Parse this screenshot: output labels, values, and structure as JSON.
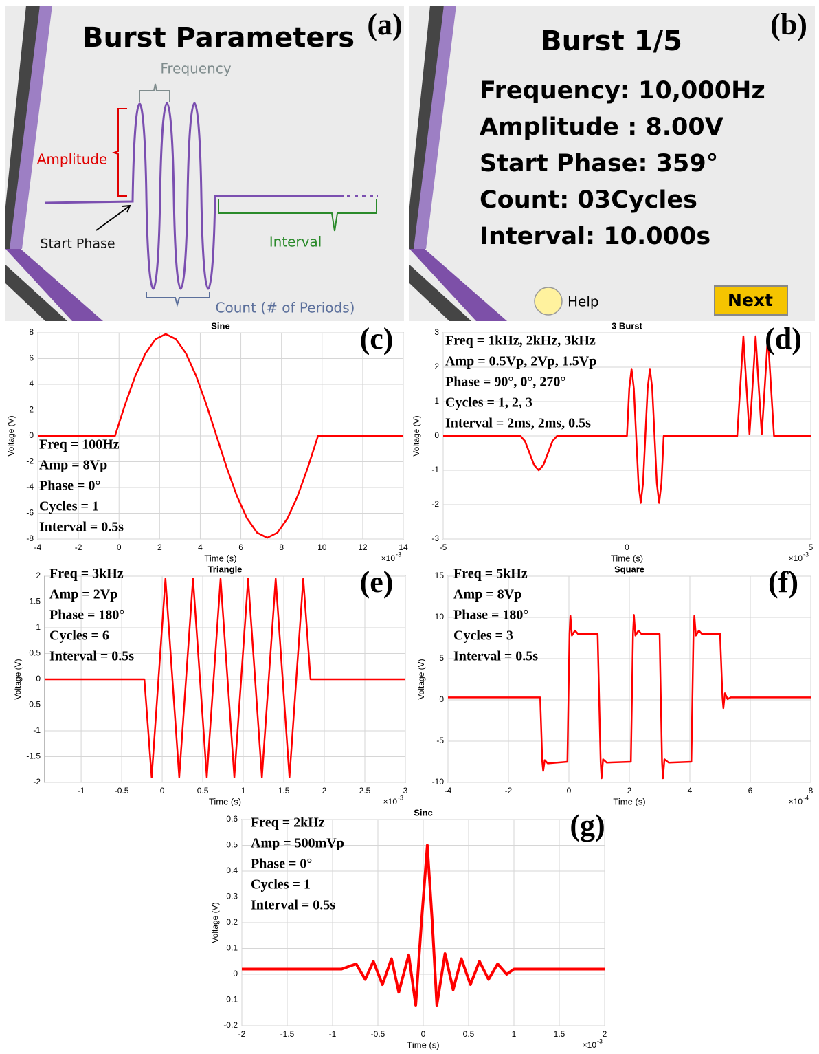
{
  "panel_a": {
    "label": "(a)",
    "title": "Burst Parameters",
    "frequency": "Frequency",
    "amplitude": "Amplitude",
    "start_phase": "Start Phase",
    "interval": "Interval",
    "count": "Count (# of Periods)"
  },
  "panel_b": {
    "label": "(b)",
    "title": "Burst 1/5",
    "lines": [
      "Frequency: 10,000Hz",
      "Amplitude : 8.00V",
      "Start Phase: 359°",
      "Count: 03Cycles",
      "Interval: 10.000s"
    ],
    "help": "Help",
    "next": "Next"
  },
  "chart_data": [
    {
      "type": "line",
      "title": "Sine",
      "x_label": "Time (s)",
      "y_label": "Voltage (V)",
      "x_multiplier": "×10",
      "x_exponent": "-3",
      "panel_label": "(c)",
      "annotations": [
        "Freq = 100Hz",
        "Amp = 8Vp",
        "Phase = 0°",
        "Cycles = 1",
        "Interval = 0.5s"
      ],
      "x": [
        -4,
        -0.2,
        0.3,
        0.8,
        1.3,
        1.8,
        2.3,
        2.8,
        3.3,
        3.8,
        4.3,
        4.8,
        5.3,
        5.8,
        6.3,
        6.8,
        7.3,
        7.8,
        8.3,
        8.8,
        9.3,
        9.8,
        14
      ],
      "values": [
        0,
        0,
        2.44,
        4.64,
        6.39,
        7.51,
        7.9,
        7.51,
        6.39,
        4.64,
        2.44,
        0,
        -2.44,
        -4.64,
        -6.39,
        -7.51,
        -7.9,
        -7.51,
        -6.39,
        -4.64,
        -2.44,
        0,
        0
      ],
      "color": "#ff0000",
      "xlim": [
        -4,
        14
      ],
      "ylim": [
        -8,
        8
      ],
      "xticks": [
        -4,
        -2,
        0,
        2,
        4,
        6,
        8,
        10,
        12,
        14
      ],
      "yticks": [
        -8,
        -6,
        -4,
        -2,
        0,
        2,
        4,
        6,
        8
      ],
      "grid": true
    },
    {
      "type": "line",
      "title": "3 Burst",
      "x_label": "Time (s)",
      "y_label": "Voltage (V)",
      "x_multiplier": "×10",
      "x_exponent": "-3",
      "panel_label": "(d)",
      "annotations": [
        "Freq = 1kHz, 2kHz, 3kHz",
        "Amp = 0.5Vp, 2Vp, 1.5Vp",
        "Phase = 90°, 0°, 270°",
        "Cycles = 1, 2, 3",
        "Interval = 2ms, 2ms, 0.5s"
      ],
      "x": [
        -5,
        -2.9,
        -2.775,
        -2.65,
        -2.525,
        -2.4,
        -2.275,
        -2.15,
        -2.025,
        -1.9,
        0,
        0.0625,
        0.125,
        0.1875,
        0.25,
        0.3125,
        0.375,
        0.4375,
        0.5,
        0.5625,
        0.625,
        0.6875,
        0.75,
        0.8125,
        0.875,
        0.9375,
        1.0,
        3.0,
        3.083,
        3.167,
        3.25,
        3.333,
        3.417,
        3.5,
        3.583,
        3.667,
        3.75,
        3.833,
        3.917,
        4.0,
        5
      ],
      "values": [
        0,
        0,
        -0.15,
        -0.5,
        -0.85,
        -1,
        -0.85,
        -0.5,
        -0.15,
        0,
        0,
        1.38,
        1.95,
        1.38,
        0,
        -1.38,
        -1.95,
        -1.38,
        0,
        1.38,
        1.95,
        1.38,
        0,
        -1.38,
        -1.95,
        -1.38,
        0,
        0,
        1.45,
        2.9,
        1.45,
        0.05,
        1.45,
        2.9,
        1.45,
        0.05,
        1.45,
        2.9,
        1.45,
        0,
        0
      ],
      "color": "#ff0000",
      "xlim": [
        -5,
        5
      ],
      "ylim": [
        -3,
        3
      ],
      "xticks": [
        -5,
        0,
        5
      ],
      "yticks": [
        -3,
        -2,
        -1,
        0,
        1,
        2,
        3
      ],
      "grid": true
    },
    {
      "type": "line",
      "title": "Triangle",
      "x_label": "Time (s)",
      "y_label": "Voltage (V)",
      "x_multiplier": "×10",
      "x_exponent": "-3",
      "panel_label": "(e)",
      "annotations": [
        "Freq = 3kHz",
        "Amp = 2Vp",
        "Phase = 180°",
        "Cycles = 6",
        "Interval = 0.5s"
      ],
      "x": [
        -1.45,
        -0.22,
        -0.13,
        0.04,
        0.21,
        0.38,
        0.55,
        0.72,
        0.89,
        1.06,
        1.23,
        1.4,
        1.57,
        1.74,
        1.83,
        3
      ],
      "values": [
        0,
        0,
        -1.9,
        1.95,
        -1.9,
        1.95,
        -1.9,
        1.95,
        -1.9,
        1.95,
        -1.9,
        1.95,
        -1.9,
        1.95,
        0,
        0
      ],
      "color": "#ff0000",
      "xlim": [
        -1.45,
        3
      ],
      "ylim": [
        -2,
        2
      ],
      "xticks": [
        -1,
        -0.5,
        0,
        0.5,
        1,
        1.5,
        2,
        2.5,
        3
      ],
      "yticks": [
        -2,
        -1.5,
        -1,
        -0.5,
        0,
        0.5,
        1,
        1.5,
        2
      ],
      "grid": true
    },
    {
      "type": "line",
      "title": "Square",
      "x_label": "Time (s)",
      "y_label": "Voltage (V)",
      "x_multiplier": "×10",
      "x_exponent": "-4",
      "panel_label": "(f)",
      "annotations": [
        "Freq = 5kHz",
        "Amp = 8Vp",
        "Phase = 180°",
        "Cycles = 3",
        "Interval = 0.5s"
      ],
      "x": [
        -4,
        -0.95,
        -0.88,
        -0.85,
        -0.8,
        -0.7,
        -0.05,
        0.02,
        0.05,
        0.1,
        0.2,
        0.3,
        0.95,
        1.05,
        1.08,
        1.13,
        1.25,
        2.05,
        2.12,
        2.15,
        2.2,
        2.3,
        2.4,
        3.0,
        3.08,
        3.11,
        3.16,
        3.3,
        4.05,
        4.12,
        4.15,
        4.2,
        4.3,
        4.4,
        5.0,
        5.08,
        5.11,
        5.16,
        5.25,
        5.35,
        8
      ],
      "values": [
        0.3,
        0.3,
        -7.5,
        -8.6,
        -7.3,
        -7.7,
        -7.5,
        8,
        10.2,
        7.8,
        8.4,
        8,
        8,
        -7.5,
        -9.5,
        -7.2,
        -7.6,
        -7.5,
        8,
        10.3,
        7.8,
        8.4,
        8,
        8,
        -7.5,
        -9.5,
        -7.2,
        -7.6,
        -7.5,
        8,
        10.2,
        7.8,
        8.4,
        8,
        8,
        0.3,
        -1,
        0.8,
        0.1,
        0.3,
        0.3
      ],
      "color": "#ff0000",
      "xlim": [
        -4,
        8
      ],
      "ylim": [
        -10,
        15
      ],
      "xticks": [
        -4,
        -2,
        0,
        2,
        4,
        6,
        8
      ],
      "yticks": [
        -10,
        -5,
        0,
        5,
        10,
        15
      ],
      "grid": true
    },
    {
      "type": "line",
      "title": "Sinc",
      "x_label": "Time (s)",
      "y_label": "Voltage (V)",
      "x_multiplier": "×10",
      "x_exponent": "-3",
      "panel_label": "(g)",
      "annotations": [
        "Freq = 2kHz",
        "Amp = 500mVp",
        "Phase = 0°",
        "Cycles = 1",
        "Interval = 0.5s"
      ],
      "x": [
        -2,
        -0.9,
        -0.74,
        -0.64,
        -0.55,
        -0.45,
        -0.35,
        -0.27,
        -0.16,
        -0.083,
        -0.02,
        0.045,
        0.1,
        0.15,
        0.24,
        0.33,
        0.42,
        0.52,
        0.62,
        0.72,
        0.82,
        0.92,
        1.0,
        2
      ],
      "values": [
        0.02,
        0.02,
        0.04,
        -0.02,
        0.05,
        -0.04,
        0.06,
        -0.07,
        0.075,
        -0.12,
        0.2,
        0.5,
        0.2,
        -0.12,
        0.08,
        -0.06,
        0.06,
        -0.04,
        0.05,
        -0.02,
        0.04,
        0,
        0.02,
        0.02
      ],
      "color": "#ff0000",
      "xlim": [
        -2,
        2
      ],
      "ylim": [
        -0.2,
        0.6
      ],
      "xticks": [
        -2,
        -1.5,
        -1,
        -0.5,
        0,
        0.5,
        1,
        1.5,
        2
      ],
      "yticks": [
        -0.2,
        -0.1,
        0,
        0.1,
        0.2,
        0.3,
        0.4,
        0.5,
        0.6
      ],
      "grid": true
    }
  ]
}
